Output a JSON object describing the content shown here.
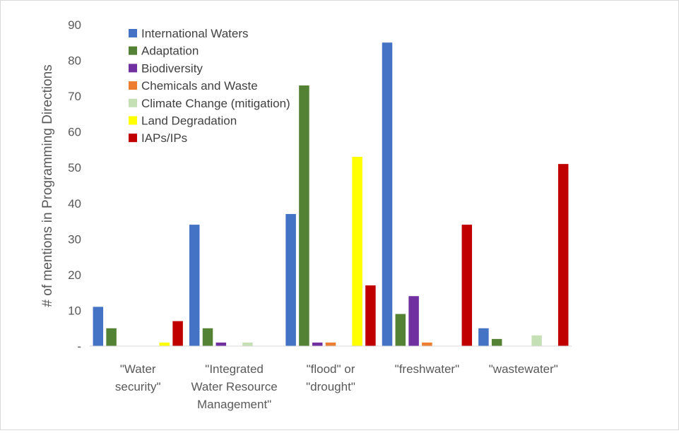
{
  "chart_data": {
    "type": "bar",
    "ylabel": "# of mentions in Programming Directions",
    "ylim": [
      0,
      90
    ],
    "yticks": [
      "-",
      "10",
      "20",
      "30",
      "40",
      "50",
      "60",
      "70",
      "80",
      "90"
    ],
    "ytick_values": [
      0,
      10,
      20,
      30,
      40,
      50,
      60,
      70,
      80,
      90
    ],
    "grid": false,
    "legend_position": "top-left",
    "categories": [
      [
        "\"Water",
        "security\""
      ],
      [
        "\"Integrated",
        "Water Resource",
        "Management\""
      ],
      [
        "\"flood\" or",
        "\"drought\""
      ],
      [
        "\"freshwater\""
      ],
      [
        "\"wastewater\""
      ]
    ],
    "series": [
      {
        "name": "International Waters",
        "color": "#4472c4",
        "values": [
          11,
          34,
          37,
          85,
          5
        ]
      },
      {
        "name": "Adaptation",
        "color": "#548235",
        "values": [
          5,
          5,
          73,
          9,
          2
        ]
      },
      {
        "name": "Biodiversity",
        "color": "#7030a0",
        "values": [
          0,
          1,
          1,
          14,
          0
        ]
      },
      {
        "name": "Chemicals and Waste",
        "color": "#ed7d31",
        "values": [
          0,
          0,
          1,
          1,
          0
        ]
      },
      {
        "name": "Climate Change (mitigation)",
        "color": "#c5e0b4",
        "values": [
          0,
          1,
          0,
          0,
          3
        ]
      },
      {
        "name": "Land Degradation",
        "color": "#ffff00",
        "values": [
          1,
          0,
          53,
          0,
          0
        ]
      },
      {
        "name": "IAPs/IPs",
        "color": "#c00000",
        "values": [
          7,
          0,
          17,
          34,
          51
        ]
      }
    ]
  }
}
